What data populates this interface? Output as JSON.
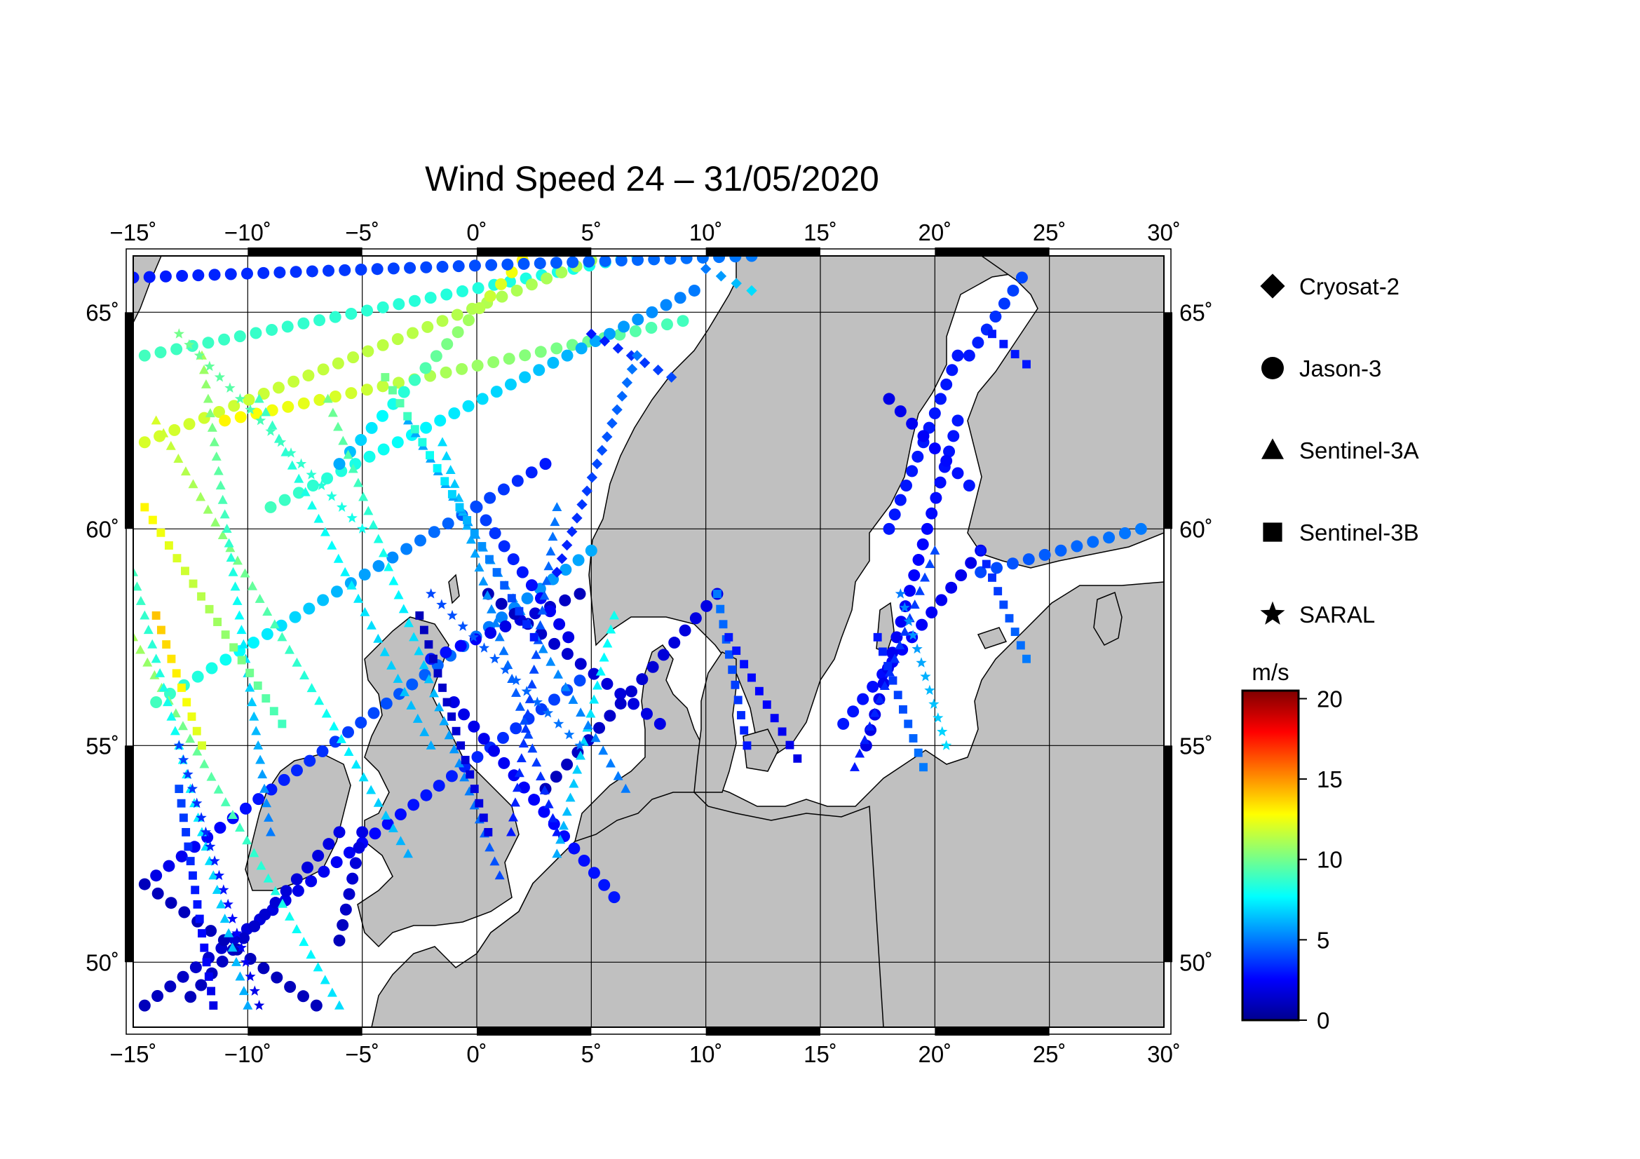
{
  "map": {
    "title": "Wind Speed 24 – 31/05/2020",
    "lon_range": [
      -15,
      30
    ],
    "lat_range": [
      48.5,
      66.3
    ],
    "lon_ticks": [
      {
        "value": -15,
        "label": "−15˚"
      },
      {
        "value": -10,
        "label": "−10˚"
      },
      {
        "value": -5,
        "label": "−5˚"
      },
      {
        "value": 0,
        "label": "0˚"
      },
      {
        "value": 5,
        "label": "5˚"
      },
      {
        "value": 10,
        "label": "10˚"
      },
      {
        "value": 15,
        "label": "15˚"
      },
      {
        "value": 20,
        "label": "20˚"
      },
      {
        "value": 25,
        "label": "25˚"
      },
      {
        "value": 30,
        "label": "30˚"
      }
    ],
    "lat_ticks": [
      {
        "value": 50,
        "label": "50˚"
      },
      {
        "value": 55,
        "label": "55˚"
      },
      {
        "value": 60,
        "label": "60˚"
      },
      {
        "value": 65,
        "label": "65˚"
      }
    ],
    "land_color": "#c0c0c0",
    "sea_color": "#ffffff",
    "grid": true
  },
  "legend": {
    "satellites": [
      {
        "name": "Cryosat-2",
        "marker": "diamond-icon"
      },
      {
        "name": "Jason-3",
        "marker": "circle-icon"
      },
      {
        "name": "Sentinel-3A",
        "marker": "triangle-icon"
      },
      {
        "name": "Sentinel-3B",
        "marker": "square-icon"
      },
      {
        "name": "SARAL",
        "marker": "star-icon"
      }
    ]
  },
  "colorbar": {
    "unit": "m/s",
    "range": [
      0,
      20.5
    ],
    "ticks": [
      {
        "value": 0,
        "label": "0"
      },
      {
        "value": 5,
        "label": "5"
      },
      {
        "value": 10,
        "label": "10"
      },
      {
        "value": 15,
        "label": "15"
      },
      {
        "value": 20,
        "label": "20"
      }
    ],
    "colors": [
      "#00008f",
      "#0000ff",
      "#0080ff",
      "#00ffff",
      "#80ff80",
      "#ffff00",
      "#ff8000",
      "#ff0000",
      "#800000"
    ]
  },
  "tracks": [
    {
      "satellite": "Jason-3",
      "start": [
        -14.5,
        64.0
      ],
      "end": [
        7.0,
        66.3
      ],
      "speed_start": 9,
      "speed_end": 8
    },
    {
      "satellite": "Jason-3",
      "start": [
        -14.5,
        62.0
      ],
      "end": [
        5.0,
        66.2
      ],
      "speed_start": 12,
      "speed_end": 11
    },
    {
      "satellite": "Jason-3",
      "start": [
        -11.0,
        62.5
      ],
      "end": [
        9.0,
        64.8
      ],
      "speed_start": 13,
      "speed_end": 9
    },
    {
      "satellite": "Jason-3",
      "start": [
        -9.0,
        60.5
      ],
      "end": [
        9.5,
        65.5
      ],
      "speed_start": 9,
      "speed_end": 5
    },
    {
      "satellite": "Jason-3",
      "start": [
        -6.0,
        61.5
      ],
      "end": [
        2.0,
        66.2
      ],
      "speed_start": 6,
      "speed_end": 13
    },
    {
      "satellite": "Jason-3",
      "start": [
        -14.0,
        56.0
      ],
      "end": [
        3.0,
        61.5
      ],
      "speed_start": 9,
      "speed_end": 3
    },
    {
      "satellite": "Jason-3",
      "start": [
        -14.0,
        52.0
      ],
      "end": [
        5.0,
        59.5
      ],
      "speed_start": 2,
      "speed_end": 6
    },
    {
      "satellite": "Jason-3",
      "start": [
        -14.5,
        49.0
      ],
      "end": [
        4.5,
        56.5
      ],
      "speed_start": 1,
      "speed_end": 4
    },
    {
      "satellite": "Jason-3",
      "start": [
        -2.0,
        57.0
      ],
      "end": [
        4.5,
        58.5
      ],
      "speed_start": 3,
      "speed_end": 1
    },
    {
      "satellite": "Jason-3",
      "start": [
        -12.5,
        49.2
      ],
      "end": [
        -6.0,
        53.0
      ],
      "speed_start": 1,
      "speed_end": 2
    },
    {
      "satellite": "Jason-3",
      "start": [
        -14.5,
        51.8
      ],
      "end": [
        -7.0,
        49.0
      ],
      "speed_start": 1,
      "speed_end": 1
    },
    {
      "satellite": "Jason-3",
      "start": [
        -5.0,
        53.0
      ],
      "end": [
        -6.0,
        50.5
      ],
      "speed_start": 2,
      "speed_end": 1
    },
    {
      "satellite": "Jason-3",
      "start": [
        -1.0,
        56.0
      ],
      "end": [
        6.0,
        51.5
      ],
      "speed_start": 2,
      "speed_end": 3
    },
    {
      "satellite": "Jason-3",
      "start": [
        0.5,
        58.5
      ],
      "end": [
        8.0,
        55.5
      ],
      "speed_start": 1,
      "speed_end": 2
    },
    {
      "satellite": "Jason-3",
      "start": [
        3.0,
        54.0
      ],
      "end": [
        10.5,
        58.5
      ],
      "speed_start": 1,
      "speed_end": 2
    },
    {
      "satellite": "Jason-3",
      "start": [
        0.0,
        60.5
      ],
      "end": [
        4.0,
        57.5
      ],
      "speed_start": 4,
      "speed_end": 2
    },
    {
      "satellite": "Jason-3",
      "start": [
        16.0,
        55.5
      ],
      "end": [
        22.0,
        59.5
      ],
      "speed_start": 3,
      "speed_end": 2
    },
    {
      "satellite": "Jason-3",
      "start": [
        17.0,
        55.0
      ],
      "end": [
        21.0,
        62.5
      ],
      "speed_start": 2,
      "speed_end": 3
    },
    {
      "satellite": "Jason-3",
      "start": [
        18.0,
        60.0
      ],
      "end": [
        21.0,
        64.0
      ],
      "speed_start": 3,
      "speed_end": 3
    },
    {
      "satellite": "Jason-3",
      "start": [
        18.0,
        63.0
      ],
      "end": [
        21.5,
        61.0
      ],
      "speed_start": 2,
      "speed_end": 3
    },
    {
      "satellite": "Jason-3",
      "start": [
        22.0,
        59.0
      ],
      "end": [
        29.0,
        60.0
      ],
      "speed_start": 4,
      "speed_end": 5
    },
    {
      "satellite": "Jason-3",
      "start": [
        21.5,
        64.0
      ],
      "end": [
        23.8,
        65.8
      ],
      "speed_start": 3,
      "speed_end": 4
    },
    {
      "satellite": "Jason-3",
      "start": [
        -15.0,
        65.8
      ],
      "end": [
        12.0,
        66.3
      ],
      "speed_start": 3,
      "speed_end": 5
    },
    {
      "satellite": "Sentinel-3A",
      "start": [
        -14.0,
        62.5
      ],
      "end": [
        -3.0,
        52.5
      ],
      "speed_start": 12,
      "speed_end": 6
    },
    {
      "satellite": "Sentinel-3A",
      "start": [
        -12.0,
        64.0
      ],
      "end": [
        -9.0,
        53.0
      ],
      "speed_start": 11,
      "speed_end": 5
    },
    {
      "satellite": "Sentinel-3A",
      "start": [
        -9.5,
        63.0
      ],
      "end": [
        -2.0,
        55.0
      ],
      "speed_start": 9,
      "speed_end": 6
    },
    {
      "satellite": "Sentinel-3A",
      "start": [
        -6.5,
        63.0
      ],
      "end": [
        1.0,
        52.0
      ],
      "speed_start": 10,
      "speed_end": 4
    },
    {
      "satellite": "Sentinel-3A",
      "start": [
        -1.5,
        62.0
      ],
      "end": [
        3.5,
        53.0
      ],
      "speed_start": 7,
      "speed_end": 3
    },
    {
      "satellite": "Sentinel-3A",
      "start": [
        -15.0,
        57.5
      ],
      "end": [
        -6.0,
        49.0
      ],
      "speed_start": 11,
      "speed_end": 7
    },
    {
      "satellite": "Sentinel-3A",
      "start": [
        3.5,
        60.5
      ],
      "end": [
        1.5,
        53.0
      ],
      "speed_start": 5,
      "speed_end": 3
    },
    {
      "satellite": "Sentinel-3A",
      "start": [
        -15.0,
        59.0
      ],
      "end": [
        -10.0,
        49.0
      ],
      "speed_start": 9,
      "speed_end": 6
    },
    {
      "satellite": "Sentinel-3A",
      "start": [
        6.0,
        58.0
      ],
      "end": [
        3.5,
        52.5
      ],
      "speed_start": 8,
      "speed_end": 6
    },
    {
      "satellite": "Sentinel-3A",
      "start": [
        -3.0,
        62.5
      ],
      "end": [
        6.5,
        54.0
      ],
      "speed_start": 6,
      "speed_end": 5
    },
    {
      "satellite": "Sentinel-3A",
      "start": [
        20.0,
        59.5
      ],
      "end": [
        16.5,
        54.5
      ],
      "speed_start": 4,
      "speed_end": 3
    },
    {
      "satellite": "Sentinel-3B",
      "start": [
        -14.5,
        60.5
      ],
      "end": [
        -8.5,
        55.5
      ],
      "speed_start": 13,
      "speed_end": 9
    },
    {
      "satellite": "Sentinel-3B",
      "start": [
        -14.0,
        58.0
      ],
      "end": [
        -12.0,
        55.0
      ],
      "speed_start": 14,
      "speed_end": 12
    },
    {
      "satellite": "Sentinel-3B",
      "start": [
        -4.0,
        63.5
      ],
      "end": [
        2.5,
        57.5
      ],
      "speed_start": 10,
      "speed_end": 3
    },
    {
      "satellite": "Sentinel-3B",
      "start": [
        -2.5,
        58.0
      ],
      "end": [
        0.5,
        53.0
      ],
      "speed_start": 1,
      "speed_end": 2
    },
    {
      "satellite": "Sentinel-3B",
      "start": [
        10.5,
        58.5
      ],
      "end": [
        11.8,
        55.0
      ],
      "speed_start": 5,
      "speed_end": 3
    },
    {
      "satellite": "Sentinel-3B",
      "start": [
        11.0,
        57.5
      ],
      "end": [
        14.0,
        54.7
      ],
      "speed_start": 3,
      "speed_end": 2
    },
    {
      "satellite": "Sentinel-3B",
      "start": [
        17.5,
        57.5
      ],
      "end": [
        19.5,
        54.5
      ],
      "speed_start": 3,
      "speed_end": 5
    },
    {
      "satellite": "Sentinel-3B",
      "start": [
        22.0,
        59.5
      ],
      "end": [
        24.0,
        57.0
      ],
      "speed_start": 3,
      "speed_end": 5
    },
    {
      "satellite": "Sentinel-3B",
      "start": [
        22.5,
        64.5
      ],
      "end": [
        24.0,
        63.8
      ],
      "speed_start": 3,
      "speed_end": 3
    },
    {
      "satellite": "Sentinel-3B",
      "start": [
        -13.0,
        54.0
      ],
      "end": [
        -11.5,
        49.0
      ],
      "speed_start": 4,
      "speed_end": 2
    },
    {
      "satellite": "SARAL",
      "start": [
        -13.0,
        55.0
      ],
      "end": [
        -9.5,
        49.0
      ],
      "speed_start": 4,
      "speed_end": 2
    },
    {
      "satellite": "SARAL",
      "start": [
        -2.0,
        58.5
      ],
      "end": [
        4.5,
        55.0
      ],
      "speed_start": 4,
      "speed_end": 5
    },
    {
      "satellite": "SARAL",
      "start": [
        -13.0,
        64.5
      ],
      "end": [
        -5.0,
        60.0
      ],
      "speed_start": 10,
      "speed_end": 8
    },
    {
      "satellite": "SARAL",
      "start": [
        18.5,
        58.5
      ],
      "end": [
        20.5,
        55.0
      ],
      "speed_start": 5,
      "speed_end": 7
    },
    {
      "satellite": "Cryosat-2",
      "start": [
        5.0,
        64.5
      ],
      "end": [
        8.5,
        63.5
      ],
      "speed_start": 3,
      "speed_end": 4
    },
    {
      "satellite": "Cryosat-2",
      "start": [
        7.0,
        64.0
      ],
      "end": [
        3.5,
        59.0
      ],
      "speed_start": 5,
      "speed_end": 3
    },
    {
      "satellite": "Cryosat-2",
      "start": [
        10.0,
        66.0
      ],
      "end": [
        12.0,
        65.5
      ],
      "speed_start": 5,
      "speed_end": 7
    }
  ]
}
